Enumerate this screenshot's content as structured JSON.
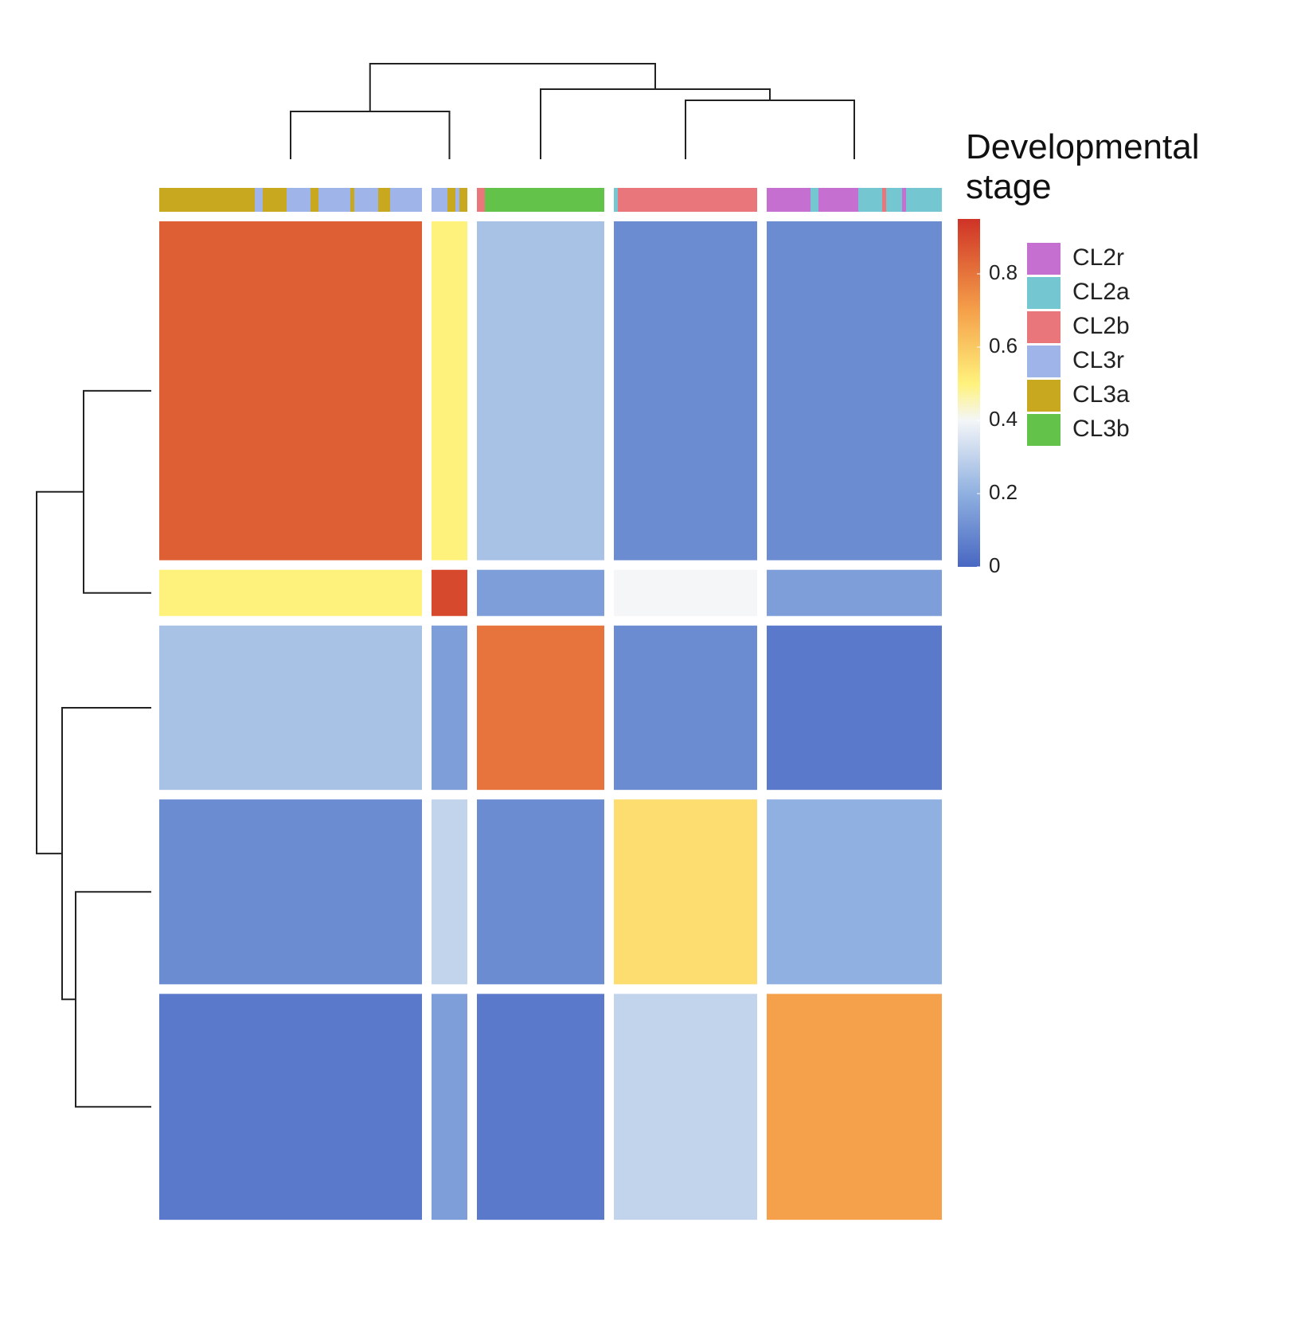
{
  "chart_data": {
    "type": "heatmap",
    "legend_title": "Developmental stage",
    "legend": [
      {
        "name": "CL2r",
        "color": "#c56fd0"
      },
      {
        "name": "CL2a",
        "color": "#74c6d0"
      },
      {
        "name": "CL2b",
        "color": "#e8767a"
      },
      {
        "name": "CL3r",
        "color": "#9fb5ea"
      },
      {
        "name": "CL3a",
        "color": "#c8a81e"
      },
      {
        "name": "CL3b",
        "color": "#62c24a"
      }
    ],
    "groups": [
      {
        "stages": [
          "CL3a",
          "CL3r",
          "CL3a",
          "CL3r",
          "CL3a",
          "CL3r",
          "CL3a",
          "CL3r",
          "CL3a",
          "CL3r"
        ],
        "counts": [
          24,
          2,
          6,
          6,
          2,
          8,
          1,
          6,
          3,
          8
        ]
      },
      {
        "stages": [
          "CL3r",
          "CL3a",
          "CL3r",
          "CL3a"
        ],
        "counts": [
          4,
          2,
          1,
          2
        ]
      },
      {
        "stages": [
          "CL2b",
          "CL3b"
        ],
        "counts": [
          2,
          30
        ]
      },
      {
        "stages": [
          "CL2a",
          "CL2b"
        ],
        "counts": [
          1,
          35
        ]
      },
      {
        "stages": [
          "CL2r",
          "CL2a",
          "CL2r",
          "CL2a",
          "CL2b",
          "CL2a",
          "CL2r",
          "CL2a"
        ],
        "counts": [
          11,
          2,
          10,
          6,
          1,
          4,
          1,
          9
        ]
      }
    ],
    "values": [
      [
        0.85,
        0.5,
        0.25,
        0.1,
        0.1
      ],
      [
        0.5,
        0.9,
        0.15,
        0.4,
        0.15
      ],
      [
        0.25,
        0.15,
        0.8,
        0.1,
        0.05
      ],
      [
        0.1,
        0.3,
        0.1,
        0.55,
        0.2
      ],
      [
        0.05,
        0.15,
        0.05,
        0.3,
        0.7
      ]
    ],
    "colorbar": {
      "lim": [
        0,
        0.95
      ],
      "ticks": [
        0,
        0.2,
        0.4,
        0.6,
        0.8
      ],
      "colorscale": [
        [
          0,
          "#4867c2"
        ],
        [
          0.2,
          "#8fb0e0"
        ],
        [
          0.4,
          "#f4f6f8"
        ],
        [
          0.5,
          "#fff27c"
        ],
        [
          0.7,
          "#f5a04a"
        ],
        [
          0.95,
          "#cf3326"
        ]
      ]
    }
  }
}
